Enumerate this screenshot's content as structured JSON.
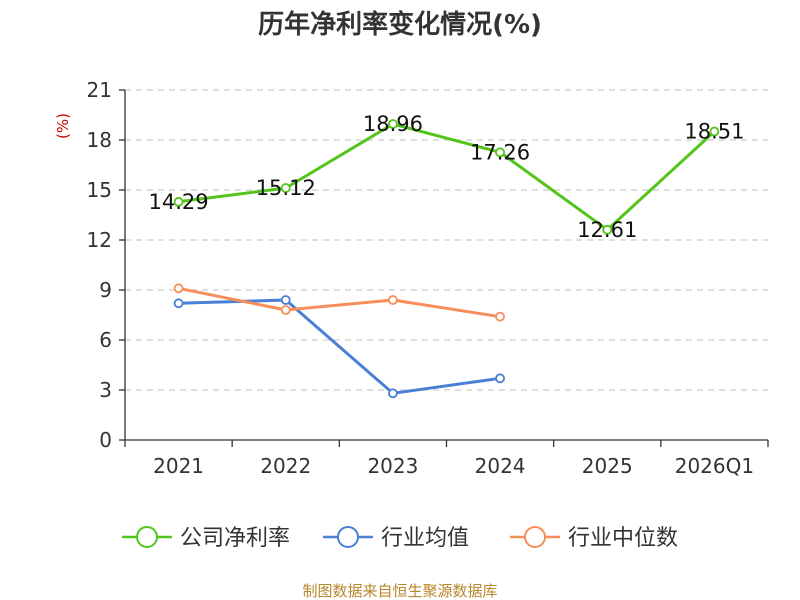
{
  "chart_data": {
    "type": "line",
    "title": "历年净利率变化情况(%)",
    "ylabel": "(%)",
    "xlabel": "",
    "categories": [
      "2021",
      "2022",
      "2023",
      "2024",
      "2025",
      "2026Q1"
    ],
    "ylim": [
      0,
      21
    ],
    "yticks": [
      0,
      3,
      6,
      9,
      12,
      15,
      18,
      21
    ],
    "grid": true,
    "legend_position": "bottom",
    "series": [
      {
        "name": "公司净利率",
        "color": "#52c41a",
        "values": [
          14.29,
          15.12,
          18.96,
          17.26,
          12.61,
          18.51
        ],
        "show_labels": true
      },
      {
        "name": "行业均值",
        "color": "#4a7fd6",
        "values": [
          8.2,
          8.4,
          2.8,
          3.7,
          null,
          null
        ],
        "show_labels": false
      },
      {
        "name": "行业中位数",
        "color": "#f78e5a",
        "values": [
          9.1,
          7.8,
          8.4,
          7.4,
          null,
          null
        ],
        "show_labels": false
      }
    ]
  },
  "colors": {
    "unit_label": "#cc0000",
    "source": "#b8862b",
    "grid": "#cccccc",
    "axis": "#333333"
  },
  "source_text": "制图数据来自恒生聚源数据库"
}
